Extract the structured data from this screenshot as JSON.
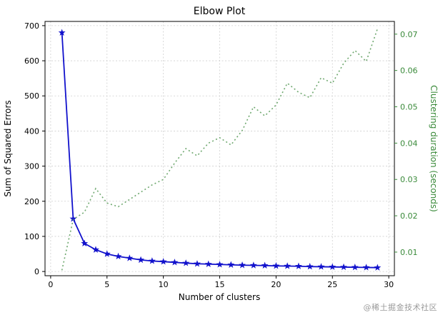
{
  "figure": {
    "watermark": "@稀土掘金技术社区"
  },
  "chart_data": {
    "type": "line",
    "title": "Elbow Plot",
    "xlabel": "Number of clusters",
    "ylabel_left": "Sum of Squared Errors",
    "ylabel_right": "Clustering duration (seconds)",
    "grid": true,
    "legend_position": "none",
    "x": [
      1,
      2,
      3,
      4,
      5,
      6,
      7,
      8,
      9,
      10,
      11,
      12,
      13,
      14,
      15,
      16,
      17,
      18,
      19,
      20,
      21,
      22,
      23,
      24,
      25,
      26,
      27,
      28,
      29
    ],
    "series": [
      {
        "name": "Sum of Squared Errors",
        "axis": "left",
        "color": "#1111cc",
        "style": "solid",
        "marker": "star",
        "values": [
          680,
          150,
          80,
          62,
          50,
          43,
          38,
          33,
          30,
          28,
          26,
          24,
          22,
          21,
          20,
          19,
          18,
          17.5,
          17,
          16,
          15.5,
          15,
          14,
          13.5,
          13,
          12.5,
          12,
          11.5,
          11
        ]
      },
      {
        "name": "Clustering duration (seconds)",
        "axis": "right",
        "color": "#5f9e5f",
        "style": "dotted",
        "marker": "none",
        "values": [
          0.005,
          0.019,
          0.021,
          0.0275,
          0.0235,
          0.0225,
          0.0245,
          0.0265,
          0.0285,
          0.03,
          0.0345,
          0.0385,
          0.0365,
          0.04,
          0.0415,
          0.0395,
          0.0435,
          0.05,
          0.0475,
          0.0505,
          0.0565,
          0.054,
          0.0525,
          0.058,
          0.0565,
          0.062,
          0.0655,
          0.0625,
          0.0715
        ]
      }
    ],
    "xlim": [
      -0.5,
      30.5
    ],
    "ylim_left": [
      -12,
      712
    ],
    "ylim_right": [
      0.0035,
      0.0735
    ],
    "xticks": [
      0,
      5,
      10,
      15,
      20,
      25,
      30
    ],
    "xtick_labels": [
      "0",
      "5",
      "10",
      "15",
      "20",
      "25",
      "30"
    ],
    "yticks_left": [
      0,
      100,
      200,
      300,
      400,
      500,
      600,
      700
    ],
    "ytick_labels_left": [
      "0",
      "100",
      "200",
      "300",
      "400",
      "500",
      "600",
      "700"
    ],
    "yticks_right": [
      0.01,
      0.02,
      0.03,
      0.04,
      0.05,
      0.06,
      0.07
    ],
    "ytick_labels_right": [
      "0.01",
      "0.02",
      "0.03",
      "0.04",
      "0.05",
      "0.06",
      "0.07"
    ],
    "axis_text_color": "#000000",
    "right_axis_text_color": "#3a8a3a",
    "grid_color": "#cfcfcf"
  }
}
